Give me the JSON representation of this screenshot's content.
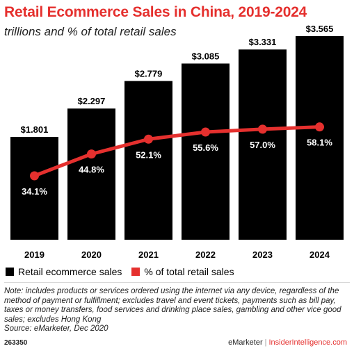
{
  "chart_data": {
    "type": "bar",
    "title": "Retail Ecommerce Sales in China, 2019-2024",
    "subtitle": "trillions and % of total retail sales",
    "categories": [
      "2019",
      "2020",
      "2021",
      "2022",
      "2023",
      "2024"
    ],
    "series": [
      {
        "name": "Retail ecommerce sales",
        "type": "bar",
        "color": "#000000",
        "values": [
          1.801,
          2.297,
          2.779,
          3.085,
          3.331,
          3.565
        ],
        "labels": [
          "$1.801",
          "$2.297",
          "$2.779",
          "$3.085",
          "$3.331",
          "$3.565"
        ]
      },
      {
        "name": "% of total retail sales",
        "type": "line",
        "color": "#e5302e",
        "values": [
          34.1,
          44.8,
          52.1,
          55.6,
          57.0,
          58.1
        ],
        "labels": [
          "34.1%",
          "44.8%",
          "52.1%",
          "55.6%",
          "57.0%",
          "58.1%"
        ]
      }
    ],
    "legend_position": "bottom-left"
  },
  "note": "Note: includes products or services ordered using the internet via any device, regardless of the method of payment or fulfillment; excludes travel and event tickets, payments such as bill pay, taxes or money transfers, food services and drinking place sales, gambling and other vice good sales; excludes Hong Kong",
  "source": "Source: eMarketer, Dec 2020",
  "footer": {
    "chart_id": "263350",
    "brand": "eMarketer",
    "separator": "|",
    "brand2": "InsiderIntelligence.com"
  }
}
